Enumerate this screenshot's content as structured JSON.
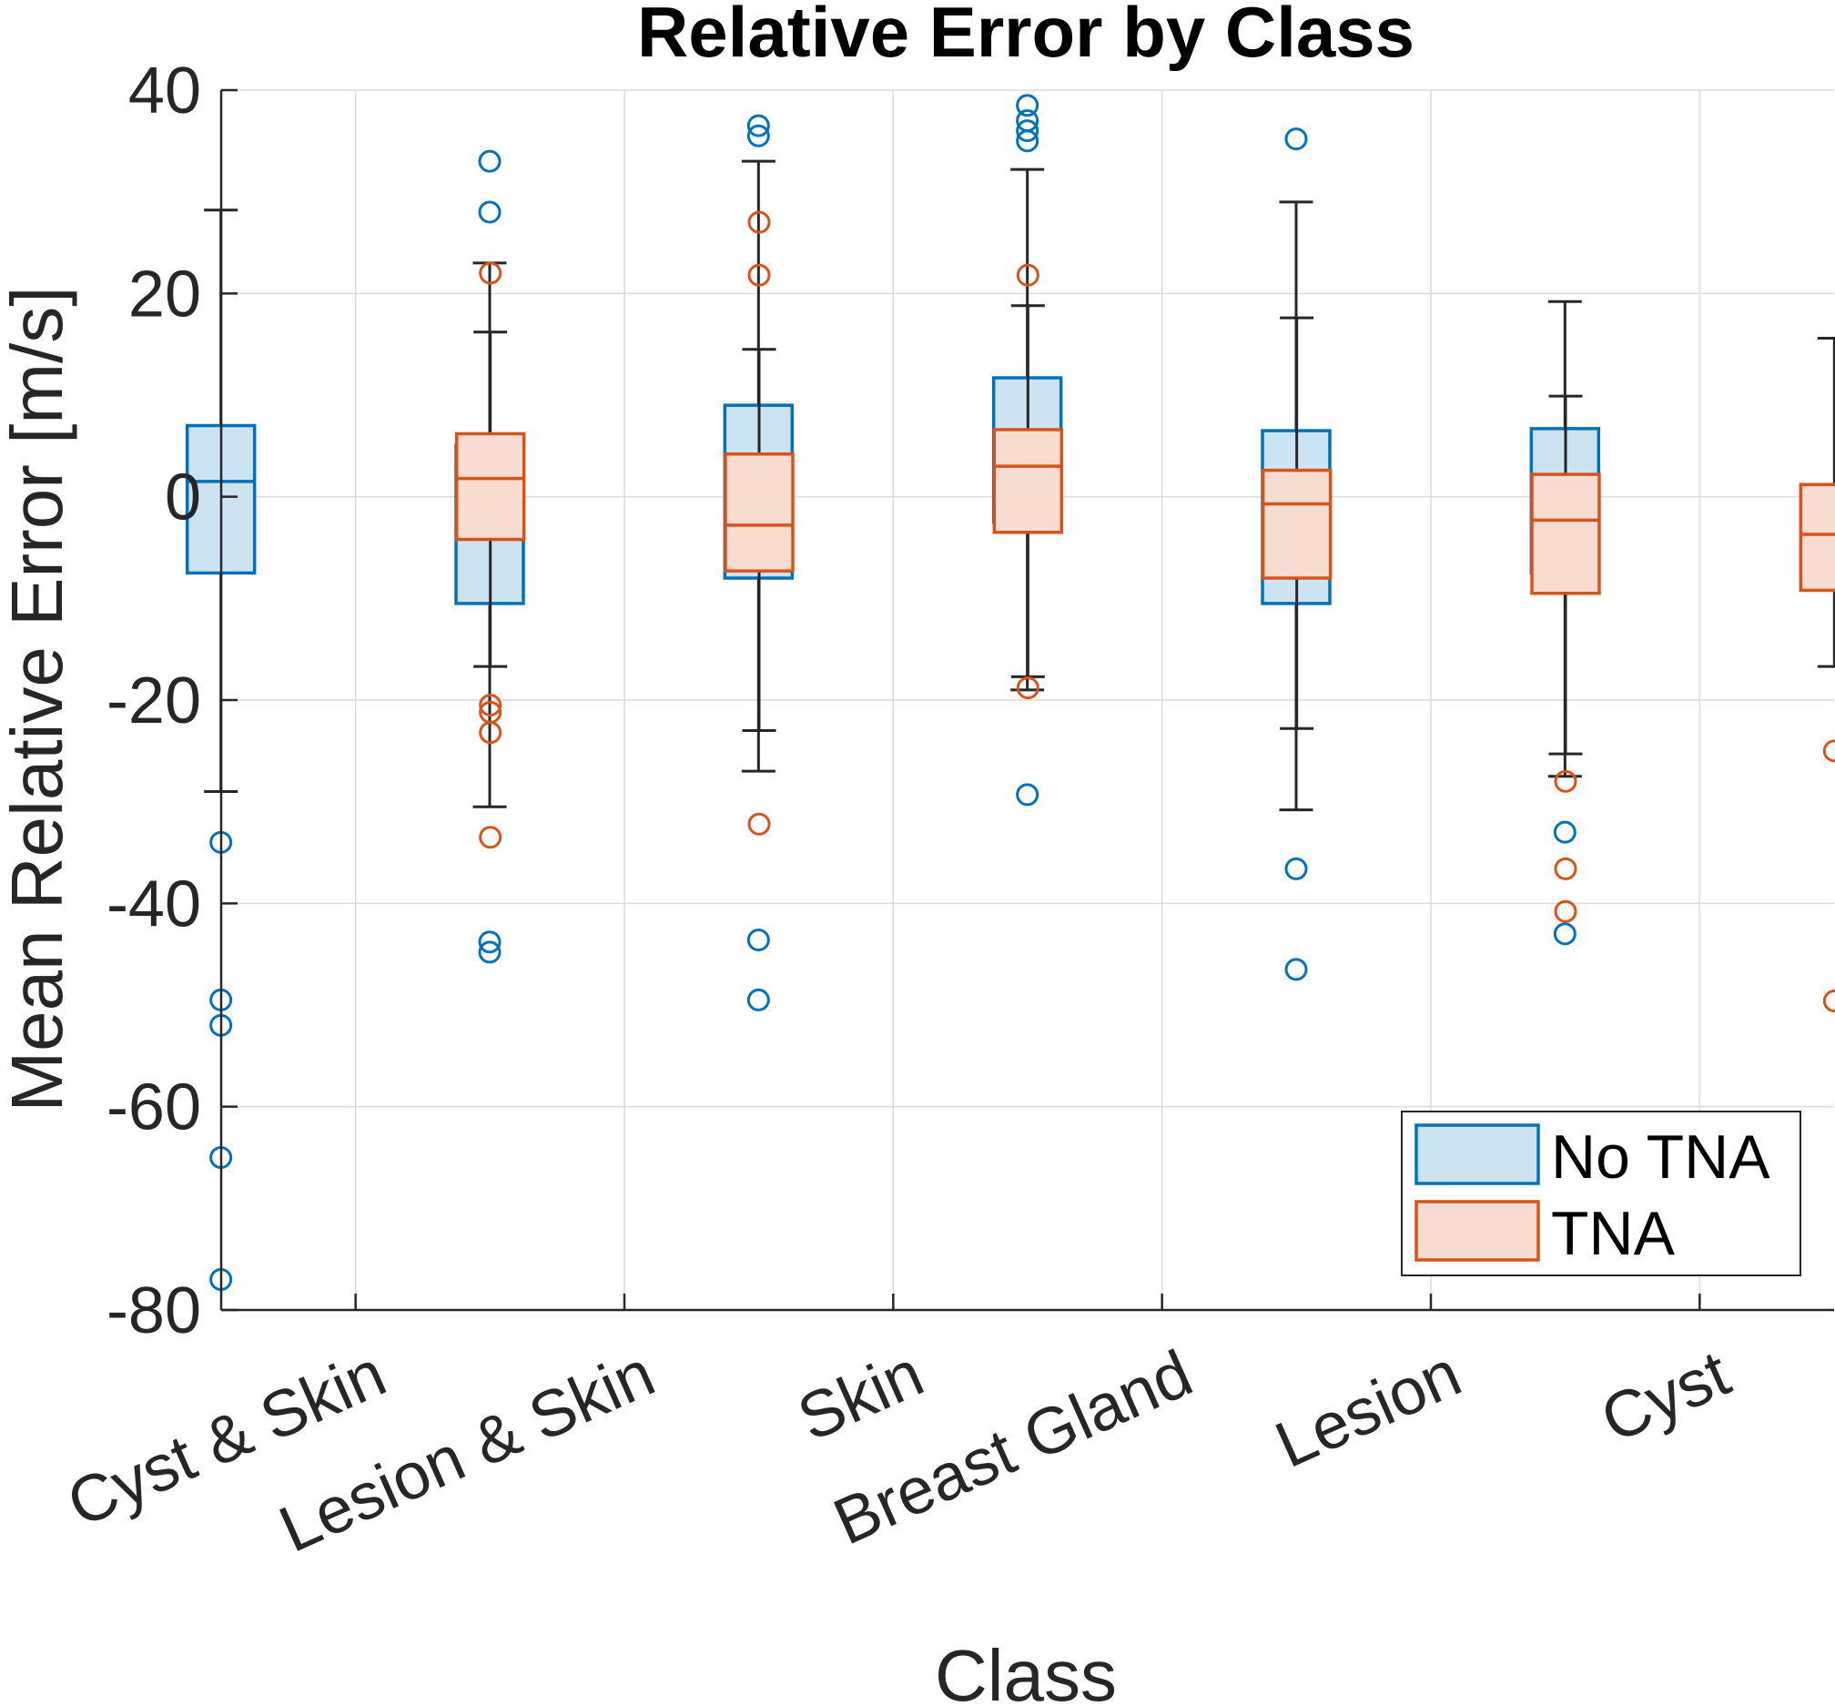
{
  "chart_data": {
    "type": "box",
    "title": "Relative Error by Class",
    "xlabel": "Class",
    "ylabel": "Mean Relative Error [m/s]",
    "ylim": [
      -80,
      40
    ],
    "yticks": [
      40,
      20,
      0,
      -20,
      -40,
      -60,
      -80
    ],
    "grid": true,
    "legend_position": "bottom-right",
    "categories": [
      "Cyst & Skin",
      "Lesion & Skin",
      "Skin",
      "Breast Gland",
      "Lesion",
      "Cyst"
    ],
    "series": [
      {
        "name": "No TNA",
        "color": "#0072BD",
        "fill": "#CCE3F2",
        "boxes": [
          {
            "whisker_low": -29,
            "q1": -7.5,
            "median": 1.5,
            "q3": 7,
            "whisker_high": 28.2,
            "outliers": [
              -34,
              -49.5,
              -52,
              -65,
              -77
            ]
          },
          {
            "whisker_low": -30.5,
            "q1": -10.5,
            "median": -0.5,
            "q3": 5,
            "whisker_high": 23,
            "outliers": [
              33,
              28,
              -43.8,
              -44.8
            ]
          },
          {
            "whisker_low": -27,
            "q1": -8,
            "median": 0.8,
            "q3": 9,
            "whisker_high": 33,
            "outliers": [
              36.5,
              35.5,
              -43.6,
              -49.5
            ]
          },
          {
            "whisker_low": -19,
            "q1": -2.5,
            "median": 2.4,
            "q3": 11.7,
            "whisker_high": 32.2,
            "outliers": [
              38.5,
              37,
              36,
              35,
              -29.3
            ]
          },
          {
            "whisker_low": -30.8,
            "q1": -10.5,
            "median": -1.2,
            "q3": 6.5,
            "whisker_high": 29,
            "outliers": [
              35.2,
              -36.6,
              -46.5
            ]
          },
          {
            "whisker_low": -27.5,
            "q1": -7.5,
            "median": -0.4,
            "q3": 6.7,
            "whisker_high": 19.2,
            "outliers": [
              -33,
              -43
            ]
          }
        ]
      },
      {
        "name": "TNA",
        "color": "#D95319",
        "fill": "#F7DDD1",
        "boxes": [
          {
            "whisker_low": -16.7,
            "q1": -4.2,
            "median": 1.8,
            "q3": 6.2,
            "whisker_high": 16.2,
            "outliers": [
              22,
              -20.5,
              -21.2,
              -23.2,
              -33.5
            ]
          },
          {
            "whisker_low": -23,
            "q1": -7.3,
            "median": -2.8,
            "q3": 4.2,
            "whisker_high": 14.5,
            "outliers": [
              27,
              21.8,
              -32.2
            ]
          },
          {
            "whisker_low": -17.7,
            "q1": -3.5,
            "median": 3,
            "q3": 6.6,
            "whisker_high": 18.8,
            "outliers": [
              21.8,
              -18.8
            ]
          },
          {
            "whisker_low": -22.8,
            "q1": -8,
            "median": -0.7,
            "q3": 2.6,
            "whisker_high": 17.6,
            "outliers": []
          },
          {
            "whisker_low": -25.3,
            "q1": -9.5,
            "median": -2.3,
            "q3": 2.2,
            "whisker_high": 9.9,
            "outliers": [
              -28,
              -36.6,
              -40.8
            ]
          },
          {
            "whisker_low": -16.7,
            "q1": -9.2,
            "median": -3.7,
            "q3": 1.2,
            "whisker_high": 15.6,
            "outliers": [
              -25,
              -49.6
            ]
          }
        ]
      }
    ]
  }
}
